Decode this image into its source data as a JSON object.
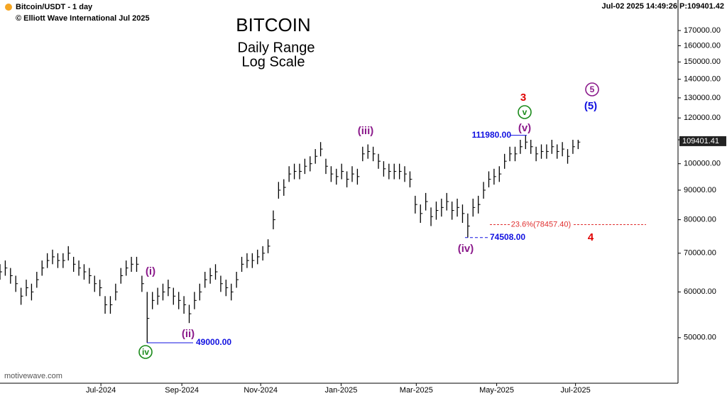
{
  "header": {
    "symbol": "Bitcoin/USDT - 1 day",
    "copyright": "© Elliott Wave International Jul 2025",
    "status": "Jul-02 2025  14:49:26  P:109401.42",
    "footer": "motivewave.com"
  },
  "chart_data": {
    "type": "ohlc",
    "title": "BITCOIN",
    "subtitle": "Daily Range",
    "scale_note": "Log Scale",
    "log_scale": true,
    "color": "#000000",
    "high": [
      67000,
      68000,
      66000,
      64000,
      61000,
      63000,
      62000,
      65000,
      68000,
      70000,
      71000,
      70000,
      70000,
      72000,
      69000,
      68000,
      67000,
      66000,
      64000,
      63000,
      59000,
      59000,
      62000,
      66000,
      68000,
      69000,
      69000,
      64000,
      60000,
      60000,
      61000,
      62000,
      63000,
      61000,
      60000,
      59000,
      57000,
      60000,
      62000,
      65000,
      66000,
      67000,
      64000,
      63000,
      62000,
      65000,
      69000,
      70000,
      70000,
      71000,
      72000,
      74000,
      83000,
      93000,
      94000,
      99000,
      100000,
      100000,
      102000,
      103000,
      106000,
      109000,
      102000,
      99000,
      98000,
      100000,
      97000,
      99000,
      98000,
      107000,
      108000,
      107000,
      104000,
      101000,
      100000,
      100000,
      100000,
      99000,
      97000,
      88000,
      85000,
      89000,
      84000,
      86000,
      87000,
      89000,
      86000,
      87000,
      85000,
      82000,
      87000,
      88000,
      93000,
      97000,
      98000,
      99000,
      104000,
      107000,
      107000,
      110000,
      111980,
      110000,
      107000,
      108000,
      108000,
      110000,
      108000,
      109000,
      106000,
      110000,
      110000
    ],
    "low": [
      63000,
      64000,
      62000,
      60000,
      57000,
      59000,
      58000,
      61000,
      64000,
      66000,
      67000,
      66000,
      66000,
      68000,
      65000,
      64000,
      63000,
      62000,
      60000,
      59000,
      55000,
      55000,
      58000,
      62000,
      64000,
      65000,
      65000,
      60000,
      49000,
      56000,
      57000,
      58000,
      59000,
      57000,
      56000,
      55000,
      53000,
      56000,
      58000,
      61000,
      62000,
      63000,
      60000,
      59000,
      58000,
      61000,
      65000,
      66000,
      66000,
      67000,
      68000,
      70000,
      77000,
      87000,
      88000,
      93000,
      94000,
      94000,
      96000,
      97000,
      100000,
      103000,
      96000,
      93000,
      92000,
      94000,
      91000,
      93000,
      92000,
      101000,
      102000,
      101000,
      98000,
      95000,
      94000,
      94000,
      94000,
      93000,
      91000,
      82000,
      79000,
      83000,
      78000,
      80000,
      81000,
      83000,
      80000,
      81000,
      79000,
      74508,
      81000,
      82000,
      87000,
      91000,
      92000,
      93000,
      98000,
      101000,
      101000,
      104000,
      106000,
      104000,
      101000,
      102000,
      102000,
      104000,
      102000,
      103000,
      100000,
      104000,
      106000
    ],
    "close": [
      65000,
      66000,
      64000,
      62000,
      59000,
      61000,
      60000,
      63000,
      66000,
      68000,
      69000,
      68000,
      68000,
      70000,
      67000,
      66000,
      65000,
      64000,
      62000,
      61000,
      57000,
      57000,
      60000,
      64000,
      66000,
      67000,
      67000,
      62000,
      54000,
      58000,
      59000,
      60000,
      61000,
      59000,
      58000,
      57000,
      55000,
      58000,
      60000,
      63000,
      64000,
      65000,
      62000,
      61000,
      60000,
      63000,
      67000,
      68000,
      68000,
      69000,
      70000,
      72000,
      80000,
      90000,
      91000,
      96000,
      97000,
      97000,
      99000,
      100000,
      103000,
      106000,
      99000,
      96000,
      95000,
      97000,
      94000,
      96000,
      95000,
      104000,
      105000,
      104000,
      101000,
      98000,
      97000,
      97000,
      97000,
      96000,
      94000,
      85000,
      82000,
      86000,
      81000,
      83000,
      84000,
      86000,
      83000,
      84000,
      82000,
      78000,
      84000,
      85000,
      90000,
      94000,
      95000,
      96000,
      101000,
      104000,
      104000,
      107000,
      109000,
      107000,
      104000,
      105000,
      105000,
      107000,
      105000,
      106000,
      103000,
      107000,
      109000
    ],
    "xlim": [
      0,
      129
    ],
    "xticks": [
      {
        "value": 19.2,
        "label": "Jul-2024"
      },
      {
        "value": 34.6,
        "label": "Sep-2024"
      },
      {
        "value": 49.6,
        "label": "Nov-2024"
      },
      {
        "value": 64.9,
        "label": "Jan-2025"
      },
      {
        "value": 79.2,
        "label": "Mar-2025"
      },
      {
        "value": 94.5,
        "label": "May-2025"
      },
      {
        "value": 109.5,
        "label": "Jul-2025"
      }
    ],
    "ylim": [
      41700,
      192000
    ],
    "yticks": [
      {
        "value": 50000,
        "label": "50000.00"
      },
      {
        "value": 60000,
        "label": "60000.00"
      },
      {
        "value": 70000,
        "label": "70000.00"
      },
      {
        "value": 80000,
        "label": "80000.00"
      },
      {
        "value": 90000,
        "label": "90000.00"
      },
      {
        "value": 100000,
        "label": "100000.00"
      },
      {
        "value": 110000,
        "label": "110000.00"
      },
      {
        "value": 120000,
        "label": "120000.00"
      },
      {
        "value": 130000,
        "label": "130000.00"
      },
      {
        "value": 140000,
        "label": "140000.00"
      },
      {
        "value": 150000,
        "label": "150000.00"
      },
      {
        "value": 160000,
        "label": "160000.00"
      },
      {
        "value": 170000,
        "label": "170000.00"
      }
    ],
    "last_price": {
      "value": 109401.41,
      "label": "109401.41"
    },
    "levels": [
      {
        "value": 111980,
        "label": "111980.00"
      },
      {
        "value": 74508,
        "label": "74508.00"
      },
      {
        "value": 49000,
        "label": "49000.00"
      },
      {
        "value": 78457.4,
        "label": "23.6%(78457.40)"
      }
    ],
    "waves": [
      "(i)",
      "(ii)",
      "(iii)",
      "(iv)",
      "(v)",
      "iv",
      "v",
      "3",
      "4",
      "5",
      "(5)"
    ]
  }
}
